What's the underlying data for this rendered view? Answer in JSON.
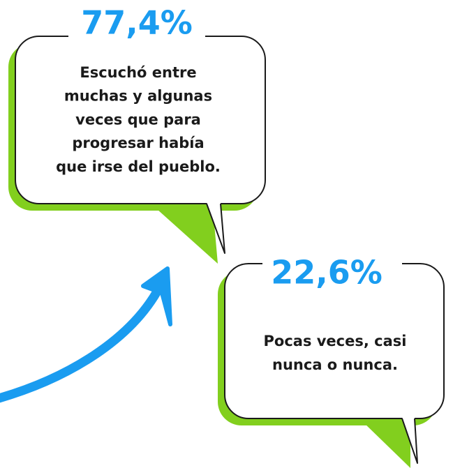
{
  "bubbles": [
    {
      "percent": "77,4%",
      "lines": [
        "Escuchó entre",
        "muchas y algunas",
        "veces que para",
        "progresar había",
        "que irse del pueblo."
      ]
    },
    {
      "percent": "22,6%",
      "lines": [
        "Pocas veces, casi",
        "nunca o nunca."
      ]
    }
  ]
}
